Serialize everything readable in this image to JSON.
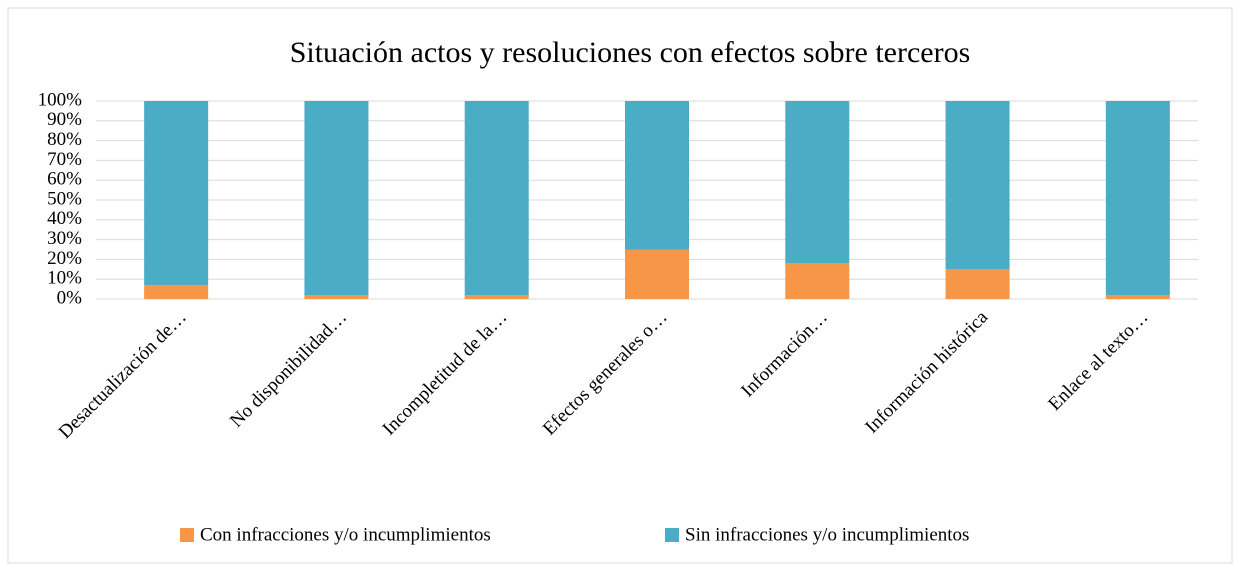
{
  "chart_data": {
    "type": "bar",
    "stacked": true,
    "title": "Situación actos y resoluciones con efectos sobre terceros",
    "categories": [
      "Desactualización de…",
      "No disponibilidad…",
      "Incompletitud de la…",
      "Efectos generales o…",
      "Información…",
      "Información histórica",
      "Enlace al texto…"
    ],
    "series": [
      {
        "name": "Con infracciones y/o incumplimientos",
        "color": "#f79646",
        "values": [
          7,
          2,
          2,
          25,
          18,
          15,
          2
        ]
      },
      {
        "name": "Sin infracciones y/o incumplimientos",
        "color": "#4bacc6",
        "values": [
          93,
          98,
          98,
          75,
          82,
          85,
          98
        ]
      }
    ],
    "ylim": [
      0,
      100
    ],
    "yticks": [
      {
        "value": 0,
        "label": "0%"
      },
      {
        "value": 10,
        "label": "10%"
      },
      {
        "value": 20,
        "label": "20%"
      },
      {
        "value": 30,
        "label": "30%"
      },
      {
        "value": 40,
        "label": "40%"
      },
      {
        "value": 50,
        "label": "50%"
      },
      {
        "value": 60,
        "label": "60%"
      },
      {
        "value": 70,
        "label": "70%"
      },
      {
        "value": 80,
        "label": "80%"
      },
      {
        "value": 90,
        "label": "90%"
      },
      {
        "value": 100,
        "label": "100%"
      }
    ],
    "grid": true,
    "legend": "bottom"
  }
}
